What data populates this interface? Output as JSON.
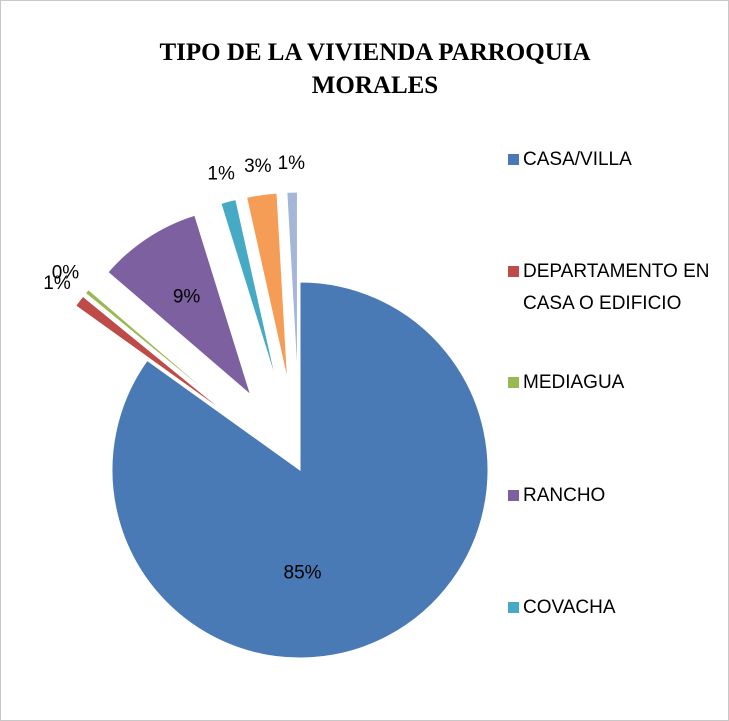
{
  "chart_data": {
    "type": "pie",
    "title": "TIPO DE LA VIVIENDA PARROQUIA MORALES",
    "categories": [
      "CASA/VILLA",
      "DEPARTAMENTO EN CASA O EDIFICIO",
      "MEDIAGUA",
      "RANCHO",
      "COVACHA",
      null,
      null
    ],
    "values": [
      84.9,
      1.0,
      0.4,
      8.9,
      1.3,
      2.6,
      0.9
    ],
    "value_labels": [
      "85%",
      "1%",
      "0%",
      "9%",
      "1%",
      "3%",
      "1%"
    ],
    "colors": [
      "#4a7ab5",
      "#be4b48",
      "#98b954",
      "#7d60a0",
      "#46aac5",
      "#f59d56",
      "#a5b6d9"
    ],
    "legend": "right"
  }
}
